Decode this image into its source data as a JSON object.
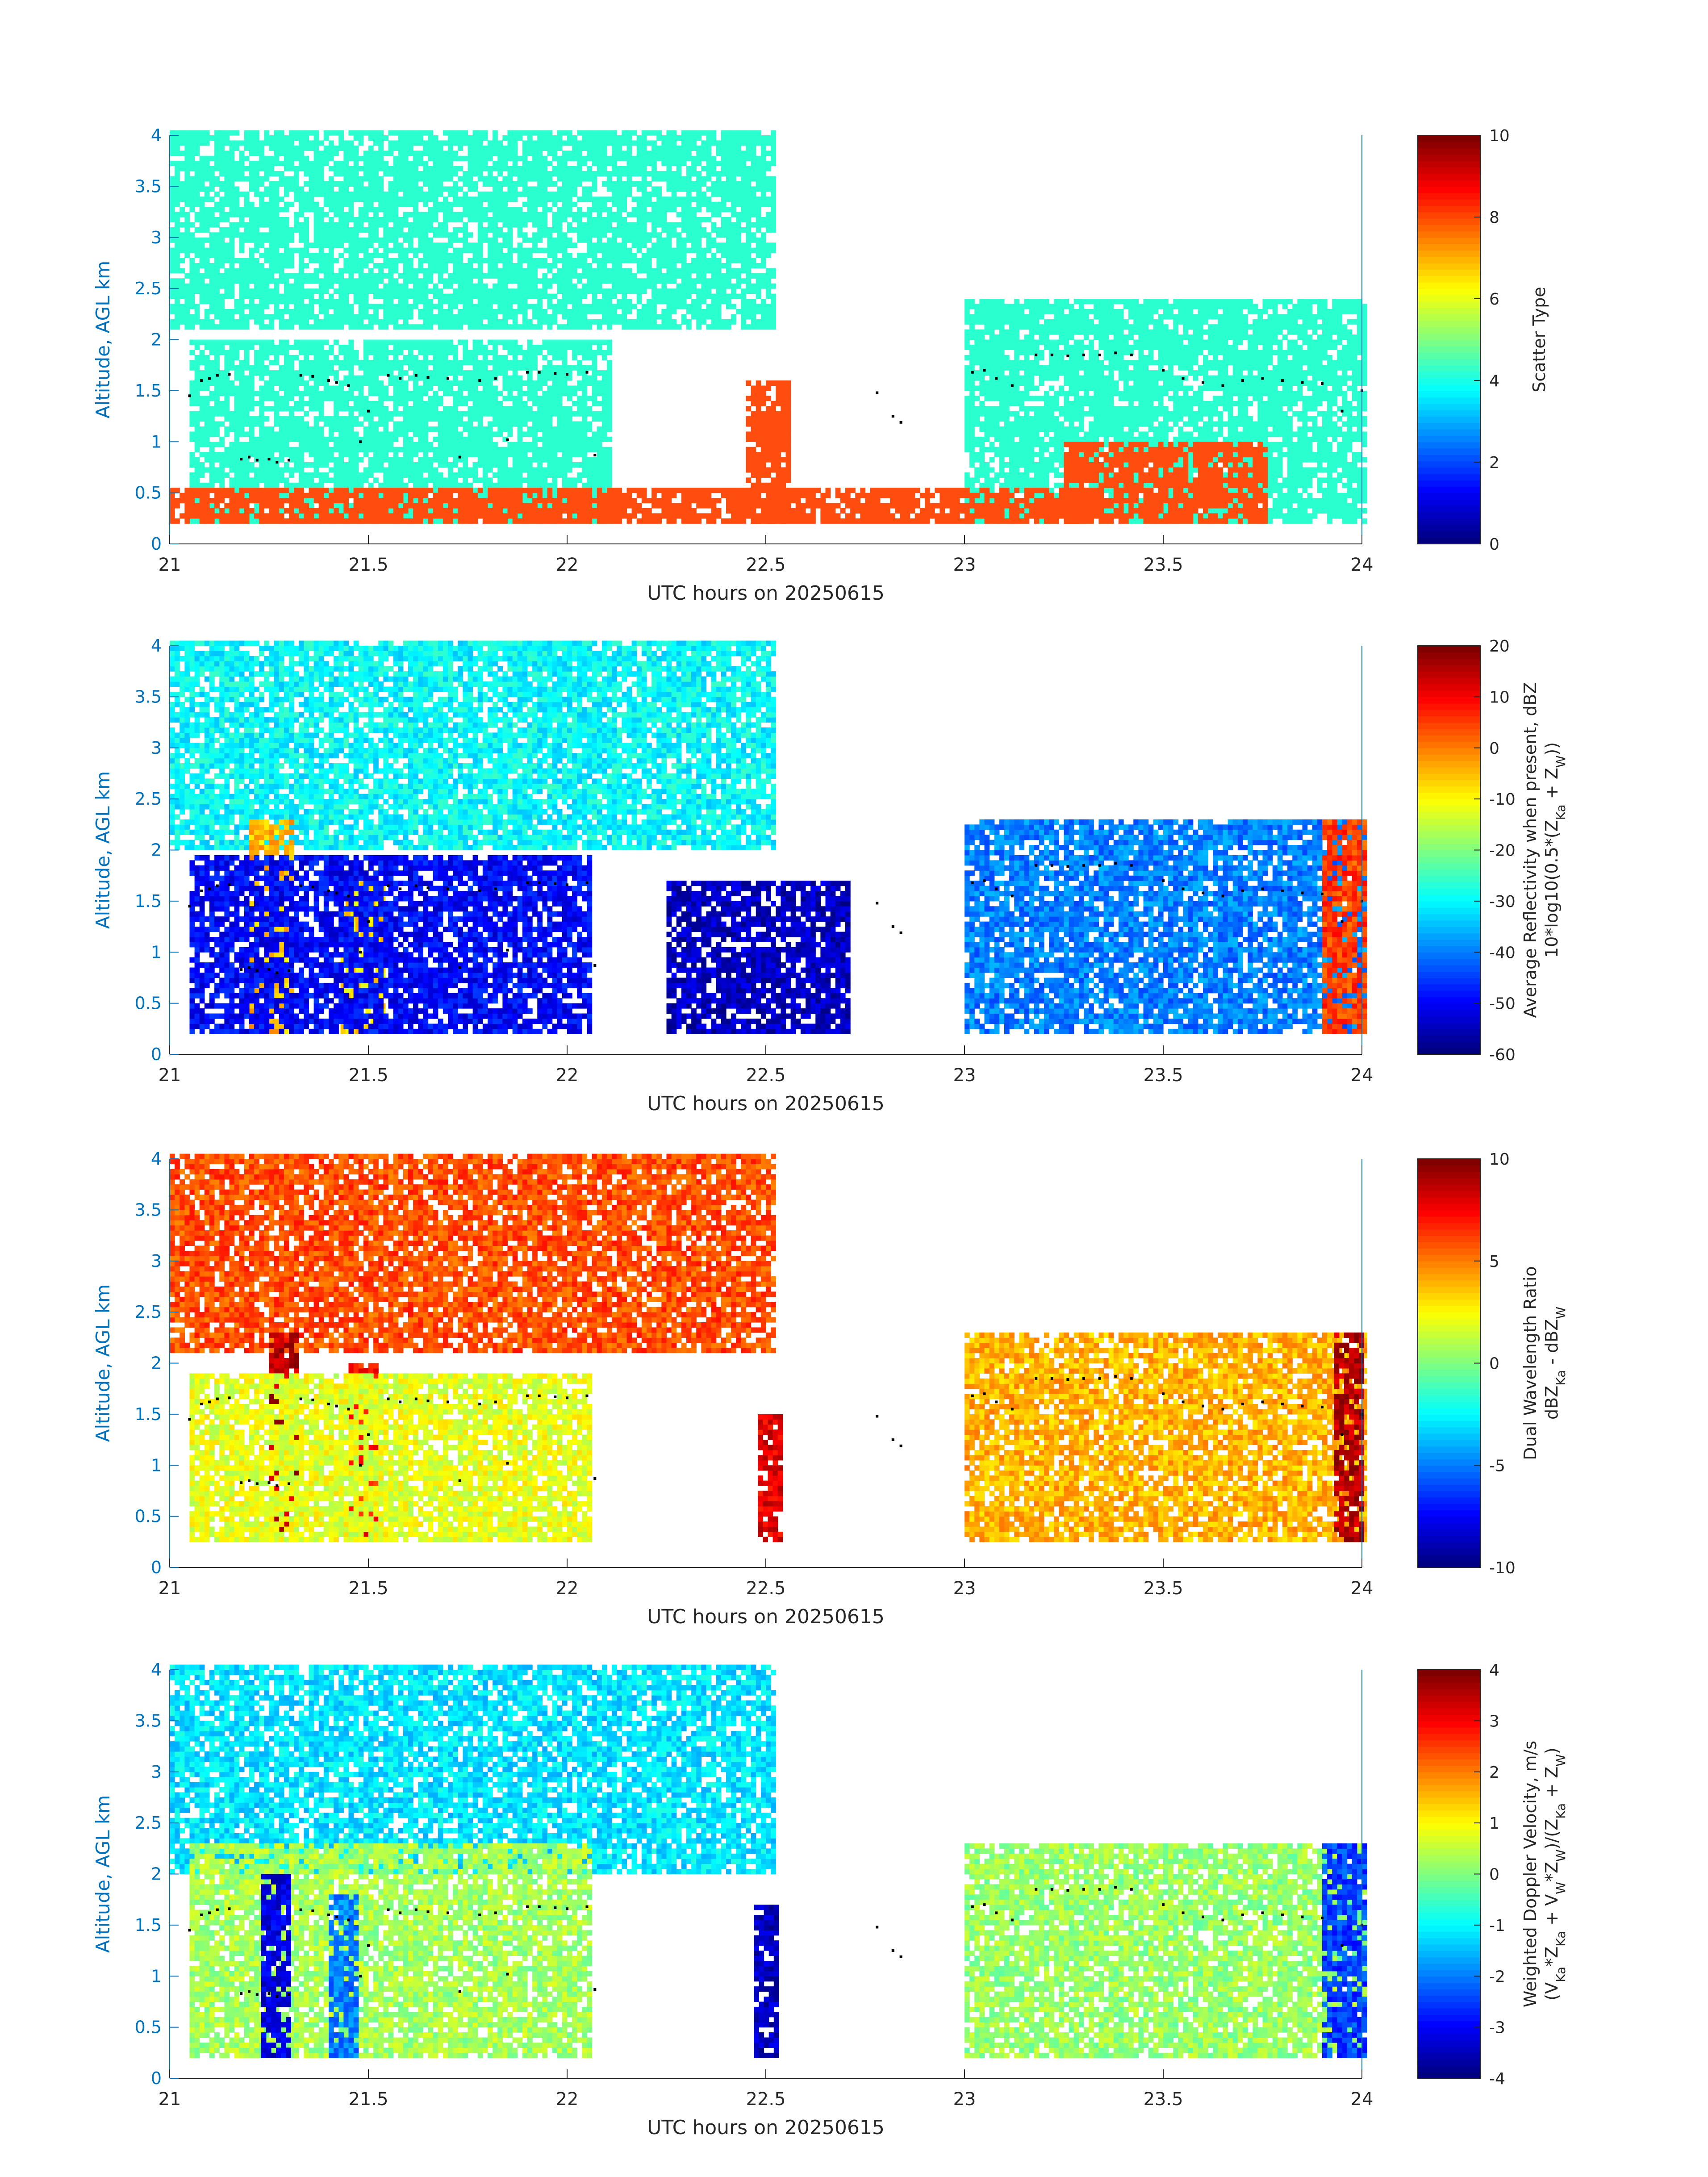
{
  "x_axis": {
    "label": "UTC hours on 20250615",
    "ticks": [
      "21",
      "21.5",
      "22",
      "22.5",
      "23",
      "23.5",
      "24"
    ],
    "range": [
      21,
      24
    ]
  },
  "y_axis": {
    "label": "Altitude, AGL km",
    "ticks": [
      "0",
      "0.5",
      "1",
      "1.5",
      "2",
      "2.5",
      "3",
      "3.5",
      "4"
    ],
    "range": [
      0,
      4
    ]
  },
  "colors": {
    "axis_y": "#0072bd",
    "cloud_cyan": "#2affd0",
    "precip_orange": "#ff4d10",
    "dots": "#000000"
  },
  "panels": [
    {
      "id": "scatter-type",
      "colorbar": {
        "ticks": [
          "0",
          "2",
          "4",
          "6",
          "8",
          "10"
        ],
        "min": 0,
        "max": 10,
        "label_lines": [
          "Scatter Type"
        ]
      }
    },
    {
      "id": "reflectivity",
      "colorbar": {
        "ticks": [
          "-60",
          "-50",
          "-40",
          "-30",
          "-20",
          "-10",
          "0",
          "10",
          "20"
        ],
        "min": -60,
        "max": 20,
        "label_lines": [
          "Average Reflectivity when present, dBZ",
          "10*log10(0.5*(Z",
          "Ka",
          " + Z",
          "W",
          "))"
        ]
      }
    },
    {
      "id": "dual-wavelength-ratio",
      "colorbar": {
        "ticks": [
          "-10",
          "-5",
          "0",
          "5",
          "10"
        ],
        "min": -10,
        "max": 10,
        "label_lines": [
          "Dual Wavelength Ratio",
          "dBZ",
          "Ka",
          " - dBZ",
          "W"
        ]
      }
    },
    {
      "id": "doppler-velocity",
      "colorbar": {
        "ticks": [
          "-4",
          "-3",
          "-2",
          "-1",
          "0",
          "1",
          "2",
          "3",
          "4"
        ],
        "min": -4,
        "max": 4,
        "label_lines": [
          "Weighted Doppler Velocity, m/s",
          "(V",
          "Ka",
          "*Z",
          "Ka",
          " + V",
          "W",
          "*Z",
          "W",
          ")/(Z",
          "Ka",
          " + Z",
          "W",
          ")"
        ]
      }
    }
  ],
  "chart_data": [
    {
      "type": "heatmap",
      "title": "",
      "xlabel": "UTC hours on 20250615",
      "ylabel": "Altitude, AGL km",
      "xlim": [
        21,
        24
      ],
      "ylim": [
        0,
        4
      ],
      "colorbar_label": "Scatter Type",
      "colorbar_range": [
        0,
        10
      ],
      "regions": [
        {
          "x": [
            21.0,
            22.52
          ],
          "y": [
            2.1,
            4.0
          ],
          "value": 4,
          "note": "upper cloud layer"
        },
        {
          "x": [
            21.05,
            22.1
          ],
          "y": [
            0.2,
            2.0
          ],
          "value": 4
        },
        {
          "x": [
            23.0,
            24.0
          ],
          "y": [
            0.2,
            2.35
          ],
          "value": 4
        },
        {
          "x": [
            21.0,
            23.3
          ],
          "y": [
            0.2,
            0.5
          ],
          "value": 9
        },
        {
          "x": [
            22.45,
            22.55
          ],
          "y": [
            0.2,
            1.6
          ],
          "value": 9
        },
        {
          "x": [
            23.25,
            23.75
          ],
          "y": [
            0.2,
            1.0
          ],
          "value": 9
        }
      ]
    },
    {
      "type": "heatmap",
      "title": "",
      "xlabel": "UTC hours on 20250615",
      "ylabel": "Altitude, AGL km",
      "xlim": [
        21,
        24
      ],
      "ylim": [
        0,
        4
      ],
      "colorbar_label": "Average Reflectivity when present, dBZ 10*log10(0.5*(ZKa + ZW))",
      "colorbar_range": [
        -60,
        20
      ],
      "regions": [
        {
          "x": [
            21.0,
            22.52
          ],
          "y": [
            2.0,
            4.0
          ],
          "value": -30
        },
        {
          "x": [
            21.2,
            21.3
          ],
          "y": [
            0.2,
            2.3
          ],
          "value": -5
        },
        {
          "x": [
            21.43,
            21.53
          ],
          "y": [
            0.2,
            1.7
          ],
          "value": -8
        },
        {
          "x": [
            21.05,
            22.05
          ],
          "y": [
            0.2,
            1.95
          ],
          "value": -50
        },
        {
          "x": [
            22.25,
            22.7
          ],
          "y": [
            0.2,
            1.7
          ],
          "value": -55
        },
        {
          "x": [
            23.0,
            24.0
          ],
          "y": [
            0.2,
            2.3
          ],
          "value": -40
        },
        {
          "x": [
            23.9,
            24.0
          ],
          "y": [
            0.2,
            2.3
          ],
          "value": 5
        }
      ]
    },
    {
      "type": "heatmap",
      "title": "",
      "xlabel": "UTC hours on 20250615",
      "ylabel": "Altitude, AGL km",
      "xlim": [
        21,
        24
      ],
      "ylim": [
        0,
        4
      ],
      "colorbar_label": "Dual Wavelength Ratio dBZKa - dBZW",
      "colorbar_range": [
        -10,
        10
      ],
      "regions": [
        {
          "x": [
            21.0,
            22.52
          ],
          "y": [
            2.1,
            4.0
          ],
          "value": 6
        },
        {
          "x": [
            21.25,
            21.32
          ],
          "y": [
            0.25,
            2.3
          ],
          "value": 9
        },
        {
          "x": [
            21.45,
            21.52
          ],
          "y": [
            0.25,
            2.0
          ],
          "value": 7
        },
        {
          "x": [
            21.05,
            22.05
          ],
          "y": [
            0.25,
            1.9
          ],
          "value": 2
        },
        {
          "x": [
            22.48,
            22.53
          ],
          "y": [
            0.25,
            1.5
          ],
          "value": 8
        },
        {
          "x": [
            23.0,
            24.0
          ],
          "y": [
            0.25,
            2.3
          ],
          "value": 4
        },
        {
          "x": [
            23.93,
            24.0
          ],
          "y": [
            0.25,
            2.3
          ],
          "value": 9
        }
      ]
    },
    {
      "type": "heatmap",
      "title": "",
      "xlabel": "UTC hours on 20250615",
      "ylabel": "Altitude, AGL km",
      "xlim": [
        21,
        24
      ],
      "ylim": [
        0,
        4
      ],
      "colorbar_label": "Weighted Doppler Velocity, m/s (VKa*ZKa + VW*ZW)/(ZKa + ZW)",
      "colorbar_range": [
        -4,
        4
      ],
      "regions": [
        {
          "x": [
            21.0,
            22.52
          ],
          "y": [
            2.0,
            4.0
          ],
          "value": -1.2
        },
        {
          "x": [
            21.05,
            22.05
          ],
          "y": [
            0.2,
            2.3
          ],
          "value": 0.3
        },
        {
          "x": [
            21.23,
            21.3
          ],
          "y": [
            0.2,
            2.0
          ],
          "value": -3.2
        },
        {
          "x": [
            21.4,
            21.47
          ],
          "y": [
            0.2,
            1.8
          ],
          "value": -2.0
        },
        {
          "x": [
            22.47,
            22.52
          ],
          "y": [
            0.2,
            1.7
          ],
          "value": -3.5
        },
        {
          "x": [
            23.0,
            24.0
          ],
          "y": [
            0.2,
            2.3
          ],
          "value": 0.2
        },
        {
          "x": [
            23.9,
            24.0
          ],
          "y": [
            0.2,
            2.3
          ],
          "value": -2.5
        }
      ]
    }
  ],
  "dot_track": [
    [
      21.05,
      1.45
    ],
    [
      21.08,
      1.6
    ],
    [
      21.1,
      1.62
    ],
    [
      21.12,
      1.65
    ],
    [
      21.15,
      1.66
    ],
    [
      21.18,
      0.83
    ],
    [
      21.2,
      0.85
    ],
    [
      21.22,
      0.82
    ],
    [
      21.25,
      0.83
    ],
    [
      21.27,
      0.8
    ],
    [
      21.3,
      0.82
    ],
    [
      21.33,
      1.65
    ],
    [
      21.36,
      1.64
    ],
    [
      21.4,
      1.6
    ],
    [
      21.42,
      1.58
    ],
    [
      21.45,
      1.55
    ],
    [
      21.48,
      1.0
    ],
    [
      21.5,
      1.3
    ],
    [
      21.55,
      1.65
    ],
    [
      21.58,
      1.62
    ],
    [
      21.62,
      1.65
    ],
    [
      21.65,
      1.63
    ],
    [
      21.7,
      1.62
    ],
    [
      21.73,
      0.85
    ],
    [
      21.78,
      1.6
    ],
    [
      21.82,
      1.62
    ],
    [
      21.85,
      1.02
    ],
    [
      21.9,
      1.68
    ],
    [
      21.93,
      1.68
    ],
    [
      21.97,
      1.67
    ],
    [
      22.0,
      1.66
    ],
    [
      22.05,
      1.68
    ],
    [
      22.07,
      0.87
    ],
    [
      22.78,
      1.48
    ],
    [
      22.82,
      1.25
    ],
    [
      22.84,
      1.19
    ],
    [
      23.02,
      1.68
    ],
    [
      23.05,
      1.7
    ],
    [
      23.08,
      1.62
    ],
    [
      23.12,
      1.55
    ],
    [
      23.18,
      1.85
    ],
    [
      23.22,
      1.85
    ],
    [
      23.26,
      1.84
    ],
    [
      23.3,
      1.85
    ],
    [
      23.34,
      1.85
    ],
    [
      23.38,
      1.87
    ],
    [
      23.42,
      1.85
    ],
    [
      23.5,
      1.7
    ],
    [
      23.55,
      1.62
    ],
    [
      23.6,
      1.58
    ],
    [
      23.65,
      1.55
    ],
    [
      23.7,
      1.6
    ],
    [
      23.75,
      1.62
    ],
    [
      23.8,
      1.6
    ],
    [
      23.85,
      1.58
    ],
    [
      23.9,
      1.57
    ],
    [
      23.95,
      1.3
    ],
    [
      24.0,
      1.5
    ]
  ]
}
